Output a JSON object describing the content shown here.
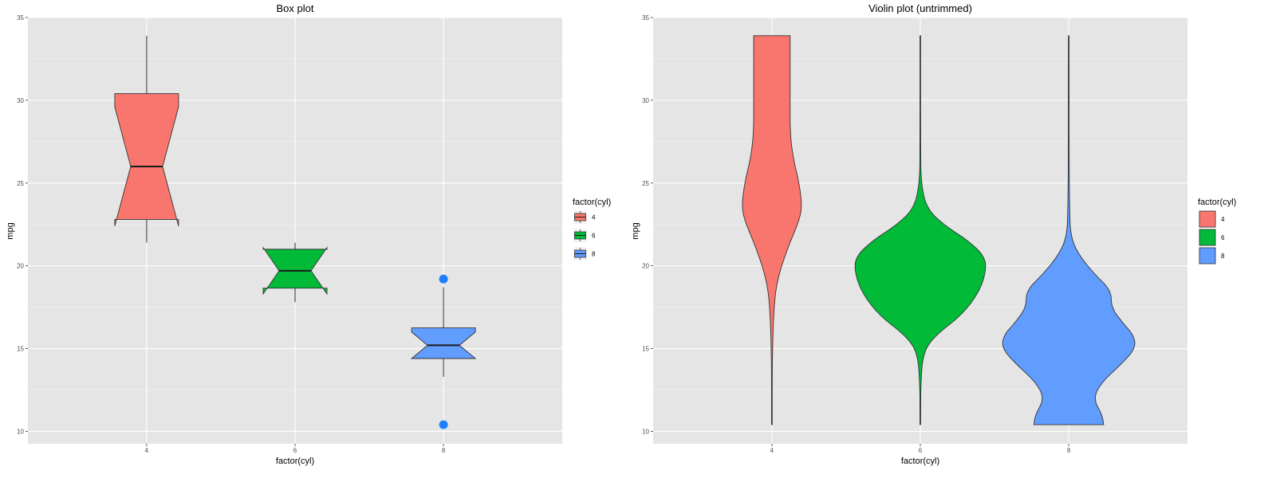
{
  "chart_data": [
    {
      "type": "boxplot",
      "title": "Box plot",
      "xlabel": "factor(cyl)",
      "ylabel": "mpg",
      "categories": [
        "4",
        "6",
        "8"
      ],
      "ylim": [
        9.25,
        35
      ],
      "yticks": [
        10,
        15,
        20,
        25,
        30,
        35
      ],
      "grid": true,
      "notched": true,
      "boxes": [
        {
          "category": "4",
          "min": 21.4,
          "q1": 22.8,
          "median": 26.0,
          "q3": 30.4,
          "max": 33.9,
          "notch_low": 22.4,
          "notch_high": 29.6,
          "outliers": [],
          "color": "#F8766D"
        },
        {
          "category": "6",
          "min": 17.8,
          "q1": 18.65,
          "median": 19.7,
          "q3": 21.0,
          "max": 21.4,
          "notch_low": 18.3,
          "notch_high": 21.1,
          "outliers": [],
          "color": "#00BA38"
        },
        {
          "category": "8",
          "min": 13.3,
          "q1": 14.4,
          "median": 15.2,
          "q3": 16.25,
          "max": 18.7,
          "notch_low": 14.4,
          "notch_high": 16.0,
          "outliers": [
            10.4,
            19.2
          ],
          "color": "#619CFF"
        }
      ],
      "outlier_color": "#1E7FFF",
      "legend": {
        "title": "factor(cyl)",
        "placement": "right",
        "entries": [
          "4",
          "6",
          "8"
        ]
      }
    },
    {
      "type": "violin",
      "title": "Violin plot (untrimmed)",
      "xlabel": "factor(cyl)",
      "ylabel": "mpg",
      "categories": [
        "4",
        "6",
        "8"
      ],
      "ylim": [
        9.25,
        35
      ],
      "yticks": [
        10,
        15,
        20,
        25,
        30,
        35
      ],
      "grid": true,
      "violins": [
        {
          "category": "4",
          "color": "#F8766D",
          "range": [
            10.4,
            33.9
          ],
          "profile": [
            [
              10.4,
              0
            ],
            [
              14,
              0.002
            ],
            [
              17,
              0.01
            ],
            [
              19,
              0.03
            ],
            [
              21,
              0.1
            ],
            [
              22.5,
              0.17
            ],
            [
              23.5,
              0.2
            ],
            [
              25,
              0.18
            ],
            [
              26.5,
              0.14
            ],
            [
              28,
              0.12
            ],
            [
              30,
              0.12
            ],
            [
              32,
              0.12
            ],
            [
              33.9,
              0.12
            ]
          ]
        },
        {
          "category": "6",
          "color": "#00BA38",
          "range": [
            10.4,
            33.9
          ],
          "profile": [
            [
              10.4,
              0
            ],
            [
              13,
              0.003
            ],
            [
              14.8,
              0.02
            ],
            [
              15.8,
              0.1
            ],
            [
              17,
              0.27
            ],
            [
              18.3,
              0.38
            ],
            [
              19.5,
              0.43
            ],
            [
              20.5,
              0.43
            ],
            [
              21.5,
              0.32
            ],
            [
              22.5,
              0.15
            ],
            [
              23.5,
              0.04
            ],
            [
              25,
              0.005
            ],
            [
              27,
              0.002
            ],
            [
              33.9,
              0
            ]
          ]
        },
        {
          "category": "8",
          "color": "#619CFF",
          "range": [
            10.4,
            33.9
          ],
          "profile": [
            [
              10.4,
              0.23
            ],
            [
              11,
              0.22
            ],
            [
              12,
              0.16
            ],
            [
              13,
              0.22
            ],
            [
              14,
              0.34
            ],
            [
              15,
              0.44
            ],
            [
              15.8,
              0.43
            ],
            [
              16.6,
              0.35
            ],
            [
              17.5,
              0.28
            ],
            [
              18.5,
              0.28
            ],
            [
              19.5,
              0.17
            ],
            [
              20.5,
              0.08
            ],
            [
              21.5,
              0.02
            ],
            [
              23,
              0.003
            ],
            [
              33.9,
              0
            ]
          ]
        }
      ],
      "legend": {
        "title": "factor(cyl)",
        "placement": "right",
        "entries": [
          "4",
          "6",
          "8"
        ]
      }
    }
  ]
}
